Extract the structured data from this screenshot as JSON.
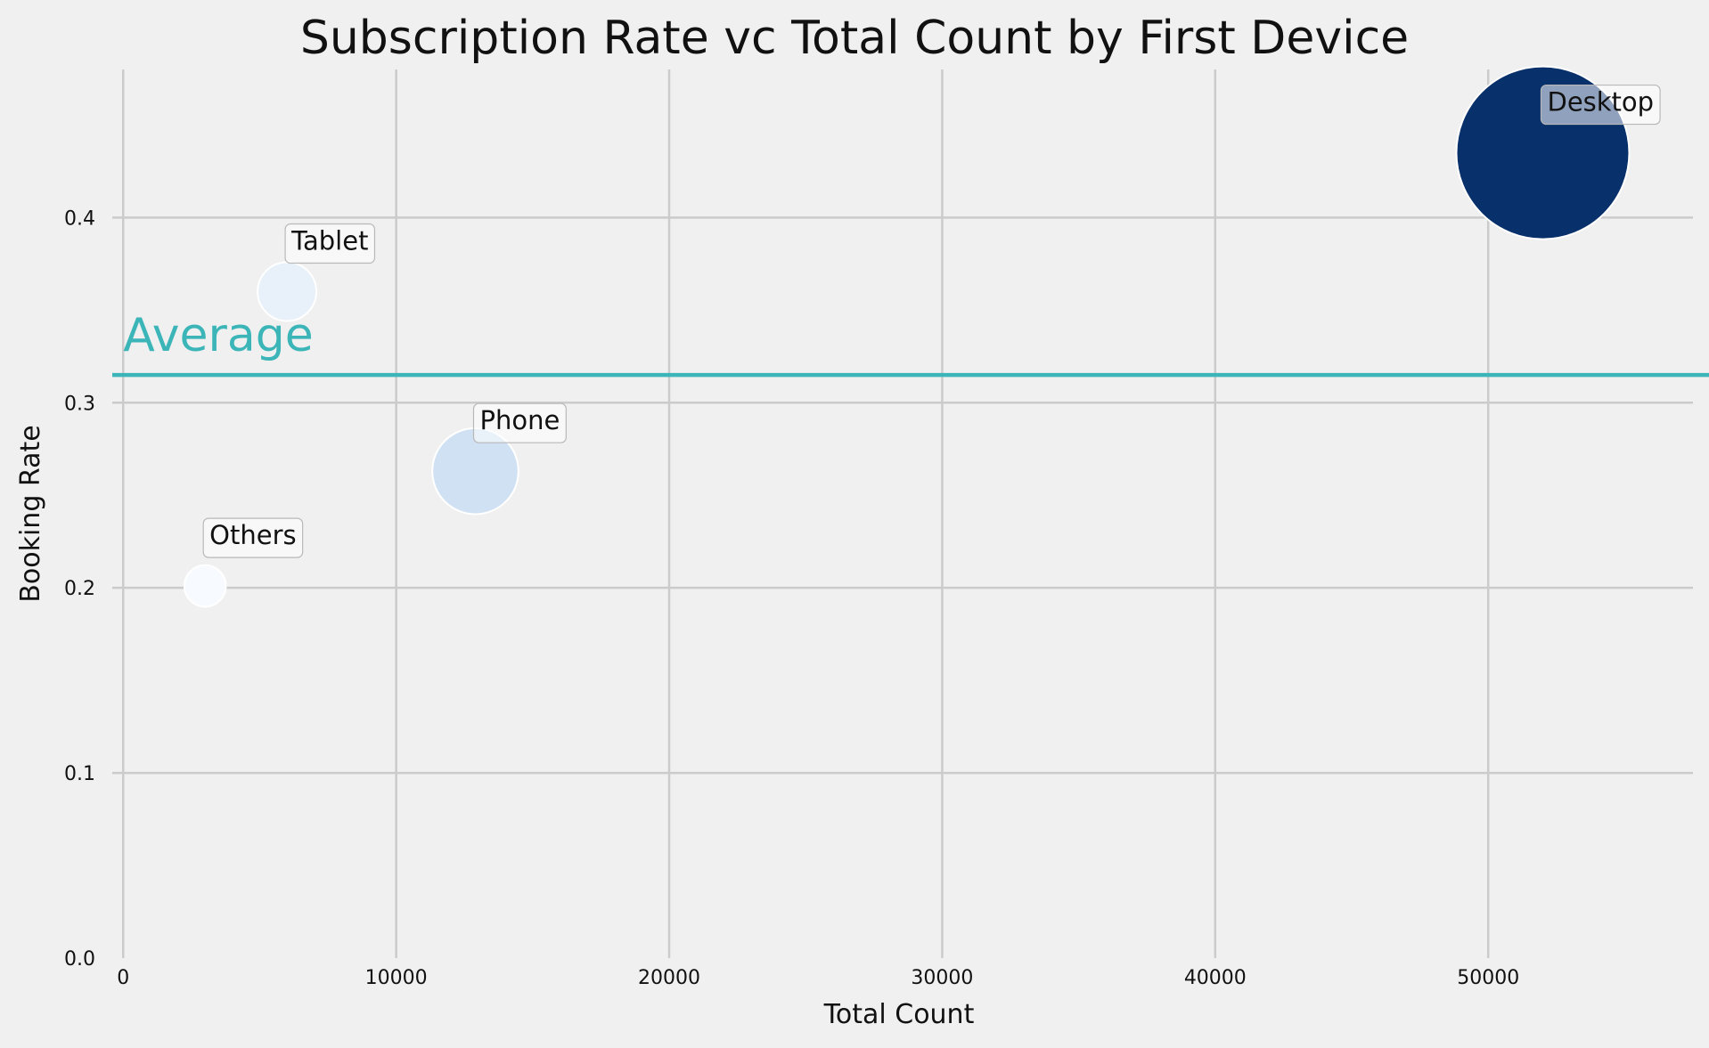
{
  "chart_data": {
    "type": "scatter",
    "variant": "bubble",
    "title": "Subscription Rate vc Total Count by First Device",
    "xlabel": "Total Count",
    "ylabel": "Booking Rate",
    "xlim": [
      -400,
      57500
    ],
    "ylim": [
      0.0,
      0.48
    ],
    "xticks": [
      0,
      10000,
      20000,
      30000,
      40000,
      50000
    ],
    "yticks": [
      0.0,
      0.1,
      0.2,
      0.3,
      0.4
    ],
    "ytick_labels": [
      "0.0",
      "0.1",
      "0.2",
      "0.3",
      "0.4"
    ],
    "grid": true,
    "colormap": "Blues",
    "points": [
      {
        "label": "Desktop",
        "x": 52000,
        "y": 0.435,
        "color": "#08306b"
      },
      {
        "label": "Tablet",
        "x": 6000,
        "y": 0.36,
        "color": "#e8f1fa"
      },
      {
        "label": "Phone",
        "x": 12900,
        "y": 0.263,
        "color": "#cfe1f2"
      },
      {
        "label": "Others",
        "x": 3000,
        "y": 0.201,
        "color": "#f7fbff"
      }
    ],
    "reference_line": {
      "label": "Average",
      "y": 0.315,
      "color": "#3bb5b8"
    },
    "background_color": "#f0f0f0",
    "grid_color": "#cbcbcb"
  }
}
